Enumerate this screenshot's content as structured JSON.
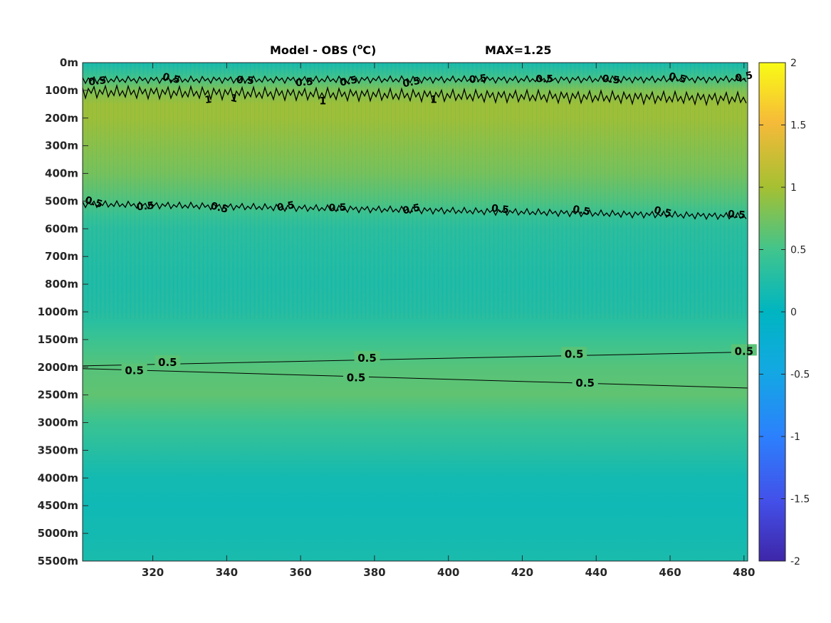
{
  "chart_data": {
    "type": "heatmap",
    "title": "Model - OBS (°C)",
    "title_prefix": "Model - OBS (",
    "title_unit_super": "o",
    "title_unit_suffix": "C)",
    "annotation": "MAX=1.25",
    "xlabel": "",
    "ylabel": "",
    "x_ticks": [
      320,
      340,
      360,
      380,
      400,
      420,
      440,
      460,
      480
    ],
    "x_range": [
      301,
      481
    ],
    "y_tick_labels": [
      "0m",
      "100m",
      "200m",
      "300m",
      "400m",
      "500m",
      "600m",
      "700m",
      "800m",
      "1000m",
      "1500m",
      "2000m",
      "2500m",
      "3000m",
      "3500m",
      "4000m",
      "4500m",
      "5000m",
      "5500m"
    ],
    "colorbar": {
      "range": [
        -2,
        2
      ],
      "ticks": [
        "2",
        "1.5",
        "1",
        "0.5",
        "0",
        "-0.5",
        "-1",
        "-1.5",
        "-2"
      ],
      "colormap": "parula"
    },
    "depth_profile": [
      {
        "depth_index": 0.0,
        "value": 0.15
      },
      {
        "depth_index": 0.5,
        "value": 0.45
      },
      {
        "depth_index": 1.0,
        "value": 0.8
      },
      {
        "depth_index": 1.5,
        "value": 0.95
      },
      {
        "depth_index": 2.0,
        "value": 0.95
      },
      {
        "depth_index": 3.0,
        "value": 0.85
      },
      {
        "depth_index": 4.0,
        "value": 0.75
      },
      {
        "depth_index": 5.0,
        "value": 0.55
      },
      {
        "depth_index": 5.5,
        "value": 0.4
      },
      {
        "depth_index": 6.0,
        "value": 0.3
      },
      {
        "depth_index": 7.0,
        "value": 0.25
      },
      {
        "depth_index": 8.0,
        "value": 0.22
      },
      {
        "depth_index": 9.0,
        "value": 0.25
      },
      {
        "depth_index": 10.0,
        "value": 0.45
      },
      {
        "depth_index": 11.0,
        "value": 0.6
      },
      {
        "depth_index": 12.0,
        "value": 0.65
      },
      {
        "depth_index": 13.0,
        "value": 0.45
      },
      {
        "depth_index": 14.0,
        "value": 0.3
      },
      {
        "depth_index": 15.0,
        "value": 0.15
      },
      {
        "depth_index": 16.0,
        "value": 0.12
      },
      {
        "depth_index": 17.0,
        "value": 0.15
      },
      {
        "depth_index": 18.0,
        "value": 0.2
      }
    ],
    "contour_level_label": "0.5",
    "contour_level_label_1": "1",
    "contours": [
      {
        "level": 0.5,
        "style": "noisy",
        "points": [
          [
            301,
            0.62
          ],
          [
            481,
            0.6
          ]
        ],
        "labels": [
          [
            305,
            0.68
          ],
          [
            325,
            0.58
          ],
          [
            345,
            0.65
          ],
          [
            361,
            0.72
          ],
          [
            373,
            0.68
          ],
          [
            390,
            0.72
          ],
          [
            408,
            0.6
          ],
          [
            426,
            0.6
          ],
          [
            444,
            0.62
          ],
          [
            462,
            0.56
          ],
          [
            480,
            0.52
          ]
        ]
      },
      {
        "level": 1.0,
        "style": "noisy",
        "points": [
          [
            301,
            1.05
          ],
          [
            481,
            1.3
          ]
        ],
        "labels": [
          [
            335,
            1.35
          ],
          [
            342,
            1.3
          ],
          [
            366,
            1.4
          ],
          [
            396,
            1.35
          ]
        ]
      },
      {
        "level": 0.5,
        "style": "noisy",
        "points": [
          [
            301,
            5.1
          ],
          [
            481,
            5.55
          ]
        ],
        "labels": [
          [
            304,
            5.05
          ],
          [
            318,
            5.2
          ],
          [
            338,
            5.25
          ],
          [
            356,
            5.2
          ],
          [
            370,
            5.25
          ],
          [
            390,
            5.3
          ],
          [
            414,
            5.3
          ],
          [
            436,
            5.35
          ],
          [
            458,
            5.4
          ],
          [
            478,
            5.5
          ]
        ]
      },
      {
        "level": 0.5,
        "style": "smooth",
        "points": [
          [
            301,
            10.95
          ],
          [
            481,
            10.45
          ]
        ],
        "labels": [
          [
            324,
            10.85
          ],
          [
            378,
            10.7
          ],
          [
            434,
            10.55
          ],
          [
            480,
            10.45
          ]
        ]
      },
      {
        "level": 0.5,
        "style": "smooth",
        "points": [
          [
            301,
            11.05
          ],
          [
            481,
            11.75
          ]
        ],
        "labels": [
          [
            315,
            11.15
          ],
          [
            375,
            11.4
          ],
          [
            437,
            11.6
          ]
        ]
      }
    ]
  }
}
